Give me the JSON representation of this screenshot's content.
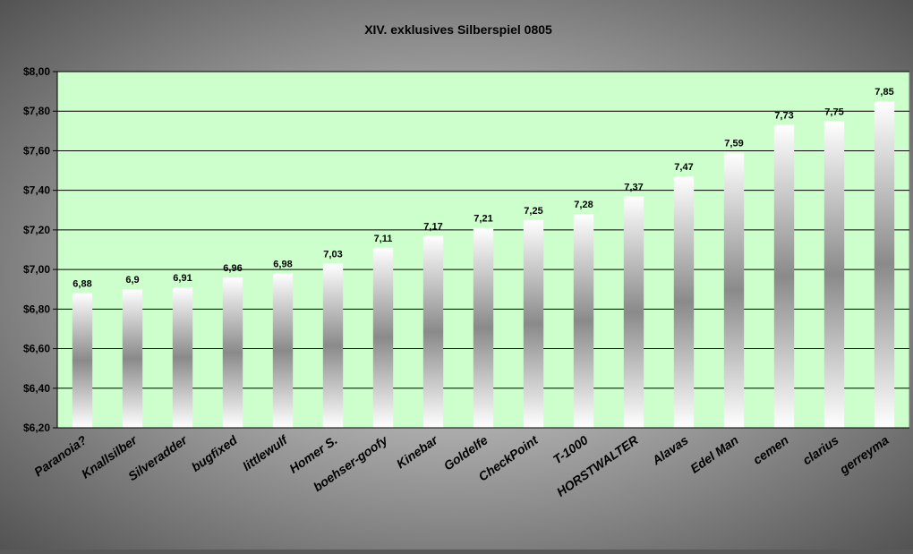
{
  "colors": {
    "frame_center": "#e6e6e6",
    "frame_edge": "#4a4a4a",
    "plot_bg": "#ccffcc",
    "bar_edge": "#ffffff",
    "bar_mid": "#8a8a8a",
    "text": "#000000"
  },
  "chart_data": {
    "type": "bar",
    "title": "XIV. exklusives Silberspiel 0805",
    "xlabel": "",
    "ylabel": "",
    "ylim": [
      6.2,
      8.0
    ],
    "yticks": [
      6.2,
      6.4,
      6.6,
      6.8,
      7.0,
      7.2,
      7.4,
      7.6,
      7.8,
      8.0
    ],
    "ytick_labels": [
      "$6,20",
      "$6,40",
      "$6,60",
      "$6,80",
      "$7,00",
      "$7,20",
      "$7,40",
      "$7,60",
      "$7,80",
      "$8,00"
    ],
    "grid": true,
    "legend": "none",
    "categories": [
      "Paranoia?",
      "Knallsilber",
      "Silveradder",
      "bugfixed",
      "littlewulf",
      "Homer S.",
      "boehser-goofy",
      "Kinebar",
      "Goldelfe",
      "CheckPoint",
      "T-1000",
      "HORSTWALTER",
      "Alavas",
      "Edel Man",
      "cemen",
      "clarius",
      "gerreyma"
    ],
    "values": [
      6.88,
      6.9,
      6.91,
      6.96,
      6.98,
      7.03,
      7.11,
      7.17,
      7.21,
      7.25,
      7.28,
      7.37,
      7.47,
      7.59,
      7.73,
      7.75,
      7.85
    ],
    "value_labels": [
      "6,88",
      "6,9",
      "6,91",
      "6,96",
      "6,98",
      "7,03",
      "7,11",
      "7,17",
      "7,21",
      "7,25",
      "7,28",
      "7,37",
      "7,47",
      "7,59",
      "7,73",
      "7,75",
      "7,85"
    ]
  }
}
